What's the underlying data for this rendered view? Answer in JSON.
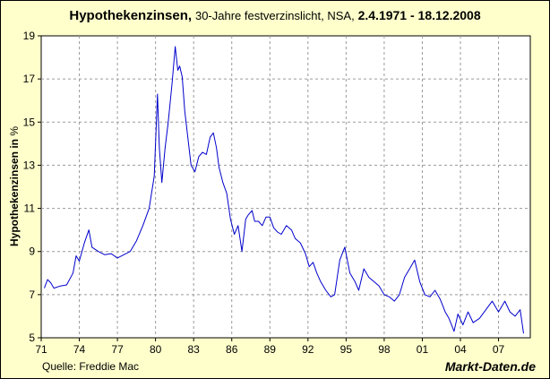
{
  "title": {
    "main": "Hypothekenzinsen,",
    "sub": "30-Jahre festverzinslicht, NSA,",
    "range": "2.4.1971 - 18.12.2008"
  },
  "source": "Quelle: Freddie Mac",
  "brand": "Markt-Daten.de",
  "chart_data": {
    "type": "line",
    "title": "Hypothekenzinsen, 30-Jahre festverzinslicht, NSA, 2.4.1971 - 18.12.2008",
    "ylabel": "Hypothekenzinsen in",
    "ylabel_unit": "%",
    "xlabel": "",
    "xlim": [
      1971.0,
      2009.5
    ],
    "ylim": [
      5,
      19
    ],
    "yticks": [
      5,
      7,
      9,
      11,
      13,
      15,
      17,
      19
    ],
    "xtick_values": [
      1971,
      1974,
      1977,
      1980,
      1983,
      1986,
      1989,
      1992,
      1995,
      1998,
      2001,
      2004,
      2007
    ],
    "xtick_labels": [
      "71",
      "74",
      "77",
      "80",
      "83",
      "86",
      "89",
      "92",
      "95",
      "98",
      "01",
      "04",
      "07"
    ],
    "grid": true,
    "legend": "none",
    "line_color": "#0000cc",
    "series": [
      {
        "x": [
          1971.25,
          1971.5,
          1971.75,
          1972.0,
          1972.5,
          1973.0,
          1973.5,
          1973.75,
          1974.0,
          1974.4,
          1974.75,
          1975.0,
          1975.5,
          1976.0,
          1976.5,
          1977.0,
          1977.5,
          1978.0,
          1978.5,
          1979.0,
          1979.5,
          1979.9,
          1980.15,
          1980.3,
          1980.5,
          1980.75,
          1981.0,
          1981.3,
          1981.55,
          1981.75,
          1981.9,
          1982.1,
          1982.3,
          1982.6,
          1982.8,
          1983.1,
          1983.4,
          1983.7,
          1984.0,
          1984.3,
          1984.55,
          1984.8,
          1985.0,
          1985.3,
          1985.6,
          1985.9,
          1986.2,
          1986.5,
          1986.8,
          1987.1,
          1987.3,
          1987.6,
          1987.8,
          1988.1,
          1988.4,
          1988.7,
          1989.0,
          1989.3,
          1989.6,
          1989.9,
          1990.3,
          1990.7,
          1991.0,
          1991.4,
          1991.8,
          1992.1,
          1992.4,
          1992.7,
          1993.0,
          1993.4,
          1993.8,
          1994.1,
          1994.5,
          1994.9,
          1995.3,
          1995.7,
          1996.0,
          1996.4,
          1996.8,
          1997.2,
          1997.6,
          1998.0,
          1998.4,
          1998.8,
          1999.2,
          1999.6,
          2000.0,
          2000.4,
          2000.8,
          2001.2,
          2001.6,
          2002.0,
          2002.4,
          2002.8,
          2003.1,
          2003.5,
          2003.8,
          2004.2,
          2004.6,
          2005.0,
          2005.5,
          2006.0,
          2006.5,
          2007.0,
          2007.5,
          2007.9,
          2008.3,
          2008.7,
          2008.97
        ],
        "values": [
          7.3,
          7.7,
          7.55,
          7.3,
          7.4,
          7.45,
          8.0,
          8.8,
          8.55,
          9.4,
          10.0,
          9.2,
          9.0,
          8.85,
          8.9,
          8.7,
          8.85,
          9.0,
          9.5,
          10.2,
          11.0,
          12.5,
          16.3,
          13.8,
          12.2,
          13.8,
          15.0,
          16.8,
          18.5,
          17.4,
          17.6,
          17.1,
          15.5,
          14.0,
          13.0,
          12.7,
          13.4,
          13.6,
          13.5,
          14.3,
          14.5,
          13.8,
          12.9,
          12.2,
          11.7,
          10.5,
          9.8,
          10.2,
          9.0,
          10.5,
          10.7,
          10.9,
          10.4,
          10.4,
          10.2,
          10.6,
          10.6,
          10.1,
          9.9,
          9.8,
          10.2,
          10.0,
          9.6,
          9.4,
          8.9,
          8.3,
          8.5,
          8.0,
          7.6,
          7.2,
          6.9,
          7.0,
          8.6,
          9.2,
          8.0,
          7.6,
          7.2,
          8.2,
          7.8,
          7.6,
          7.4,
          7.0,
          6.9,
          6.7,
          7.0,
          7.8,
          8.2,
          8.6,
          7.6,
          7.0,
          6.9,
          7.2,
          6.8,
          6.2,
          5.9,
          5.3,
          6.1,
          5.6,
          6.2,
          5.7,
          5.9,
          6.3,
          6.7,
          6.2,
          6.7,
          6.2,
          6.0,
          6.3,
          5.2
        ]
      }
    ]
  }
}
